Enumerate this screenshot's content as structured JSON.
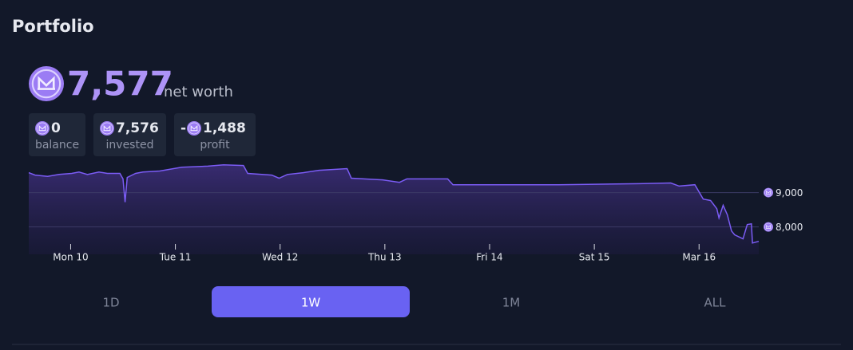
{
  "header": {
    "title": "Portfolio"
  },
  "net_worth": {
    "value": "7,577",
    "label": "net worth"
  },
  "stats": [
    {
      "sign": "",
      "value": "0",
      "label": "balance"
    },
    {
      "sign": "",
      "value": "7,576",
      "label": "invested"
    },
    {
      "sign": "-",
      "value": "1,488",
      "label": "profit"
    }
  ],
  "chart_data": {
    "type": "line",
    "color": "#7b5cf5",
    "grid": true,
    "x": [
      -0.4,
      -0.34,
      -0.22,
      -0.11,
      0.01,
      0.08,
      0.16,
      0.27,
      0.35,
      0.47,
      0.5,
      0.52,
      0.54,
      0.62,
      0.69,
      0.85,
      1.06,
      1.31,
      1.46,
      1.65,
      1.69,
      1.92,
      1.99,
      2.07,
      2.22,
      2.37,
      2.64,
      2.68,
      2.98,
      3.14,
      3.21,
      3.6,
      3.65,
      4.66,
      5.43,
      5.73,
      5.81,
      5.96,
      6.04,
      6.11,
      6.17,
      6.19,
      6.23,
      6.27,
      6.31,
      6.34,
      6.42,
      6.46,
      6.5,
      6.51,
      6.57
    ],
    "values": [
      9580,
      9510,
      9470,
      9530,
      9560,
      9600,
      9530,
      9600,
      9560,
      9560,
      9400,
      8720,
      9440,
      9560,
      9600,
      9630,
      9740,
      9770,
      9810,
      9790,
      9560,
      9510,
      9420,
      9530,
      9580,
      9650,
      9700,
      9420,
      9370,
      9300,
      9400,
      9400,
      9230,
      9230,
      9260,
      9280,
      9190,
      9230,
      8810,
      8770,
      8530,
      8260,
      8630,
      8350,
      7880,
      7770,
      7650,
      8070,
      8090,
      7530,
      7580
    ],
    "xlim": [
      -0.4,
      6.57
    ],
    "ylim": [
      7200,
      9850
    ],
    "xticks": [
      {
        "value": 0,
        "label": "Mon 10"
      },
      {
        "value": 1,
        "label": "Tue 11"
      },
      {
        "value": 2,
        "label": "Wed 12"
      },
      {
        "value": 3,
        "label": "Thu 13"
      },
      {
        "value": 4,
        "label": "Fri 14"
      },
      {
        "value": 5,
        "label": "Sat 15"
      },
      {
        "value": 6,
        "label": "Mar 16"
      }
    ],
    "yticks": [
      {
        "value": 9000,
        "label": "9,000"
      },
      {
        "value": 8000,
        "label": "8,000"
      }
    ]
  },
  "ranges": [
    "1D",
    "1W",
    "1M",
    "ALL"
  ],
  "selected_range": 1
}
